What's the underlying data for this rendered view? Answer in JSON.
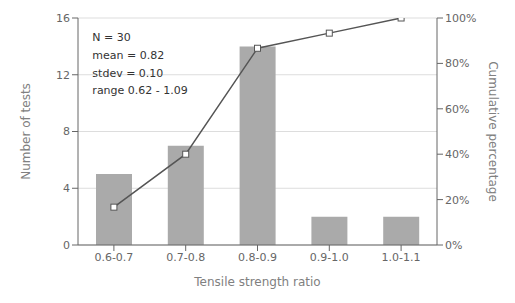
{
  "chart_data": {
    "type": "bar",
    "categories": [
      "0.6-0.7",
      "0.7-0.8",
      "0.8-0.9",
      "0.9-1.0",
      "1.0-1.1"
    ],
    "series": [
      {
        "name": "Number of tests",
        "type": "bar",
        "color": "#aaaaaa",
        "values": [
          5,
          7,
          14,
          2,
          2
        ]
      },
      {
        "name": "Cumulative percentage",
        "type": "line",
        "axis": "y2",
        "color": "#555555",
        "marker": "square",
        "values": [
          16.67,
          40.0,
          86.67,
          93.33,
          100.0
        ]
      }
    ],
    "xlabel": "Tensile strength ratio",
    "ylabel": "Number of tests",
    "y2label": "Cumulative percentage",
    "ylim": [
      0,
      16
    ],
    "yticks": [
      0,
      4,
      8,
      12,
      16
    ],
    "y2lim": [
      0,
      100
    ],
    "y2ticks": [
      {
        "value": 0,
        "label": "0%"
      },
      {
        "value": 20,
        "label": "20%"
      },
      {
        "value": 40,
        "label": "40%"
      },
      {
        "value": 60,
        "label": "60%"
      },
      {
        "value": 80,
        "label": "80%"
      },
      {
        "value": 100,
        "label": "100%"
      }
    ],
    "annotation": "N = 30\nmean = 0.82\nstdev = 0.10\nrange 0.62 - 1.09",
    "grid": true
  }
}
